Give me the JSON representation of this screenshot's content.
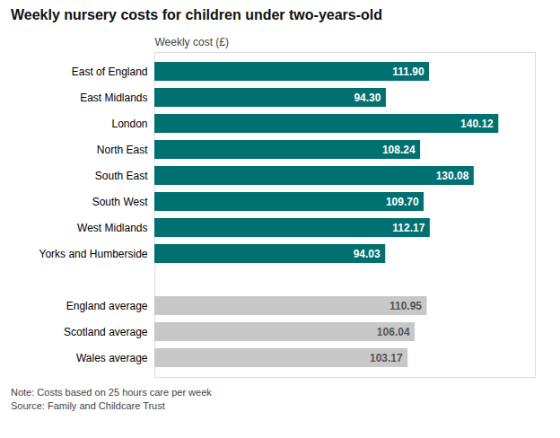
{
  "chart_data": {
    "type": "bar",
    "orientation": "horizontal",
    "title": "Weekly nursery costs for children under two-years-old",
    "xlabel": "Weekly cost (£)",
    "categories": [
      "East of England",
      "East Midlands",
      "London",
      "North East",
      "South East",
      "South West",
      "West Midlands",
      "Yorks and Humberside",
      "England average",
      "Scotland average",
      "Wales average"
    ],
    "values": [
      111.9,
      94.3,
      140.12,
      108.24,
      130.08,
      109.7,
      112.17,
      94.03,
      110.95,
      106.04,
      103.17
    ],
    "value_labels": [
      "111.90",
      "94.30",
      "140.12",
      "108.24",
      "130.08",
      "109.70",
      "112.17",
      "94.03",
      "110.95",
      "106.04",
      "103.17"
    ],
    "colors": [
      "#007070",
      "#007070",
      "#007070",
      "#007070",
      "#007070",
      "#007070",
      "#007070",
      "#007070",
      "#c8c8c8",
      "#c8c8c8",
      "#c8c8c8"
    ],
    "xlim": [
      0,
      155
    ],
    "data_labels": true,
    "tick_labels": "y",
    "grid": false,
    "annotations": [
      "Note: Costs based on 25 hours care per week",
      "Source: Family and Childcare Trust"
    ]
  }
}
